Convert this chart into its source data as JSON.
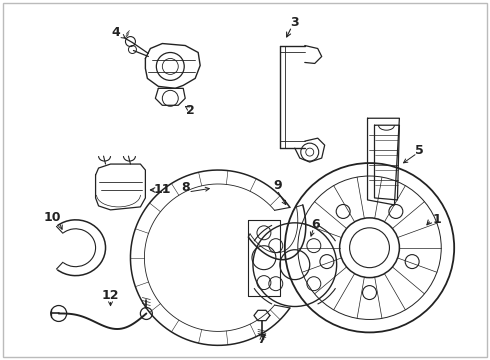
{
  "bg_color": "#ffffff",
  "line_color": "#222222",
  "fig_width": 4.9,
  "fig_height": 3.6,
  "dpi": 100
}
